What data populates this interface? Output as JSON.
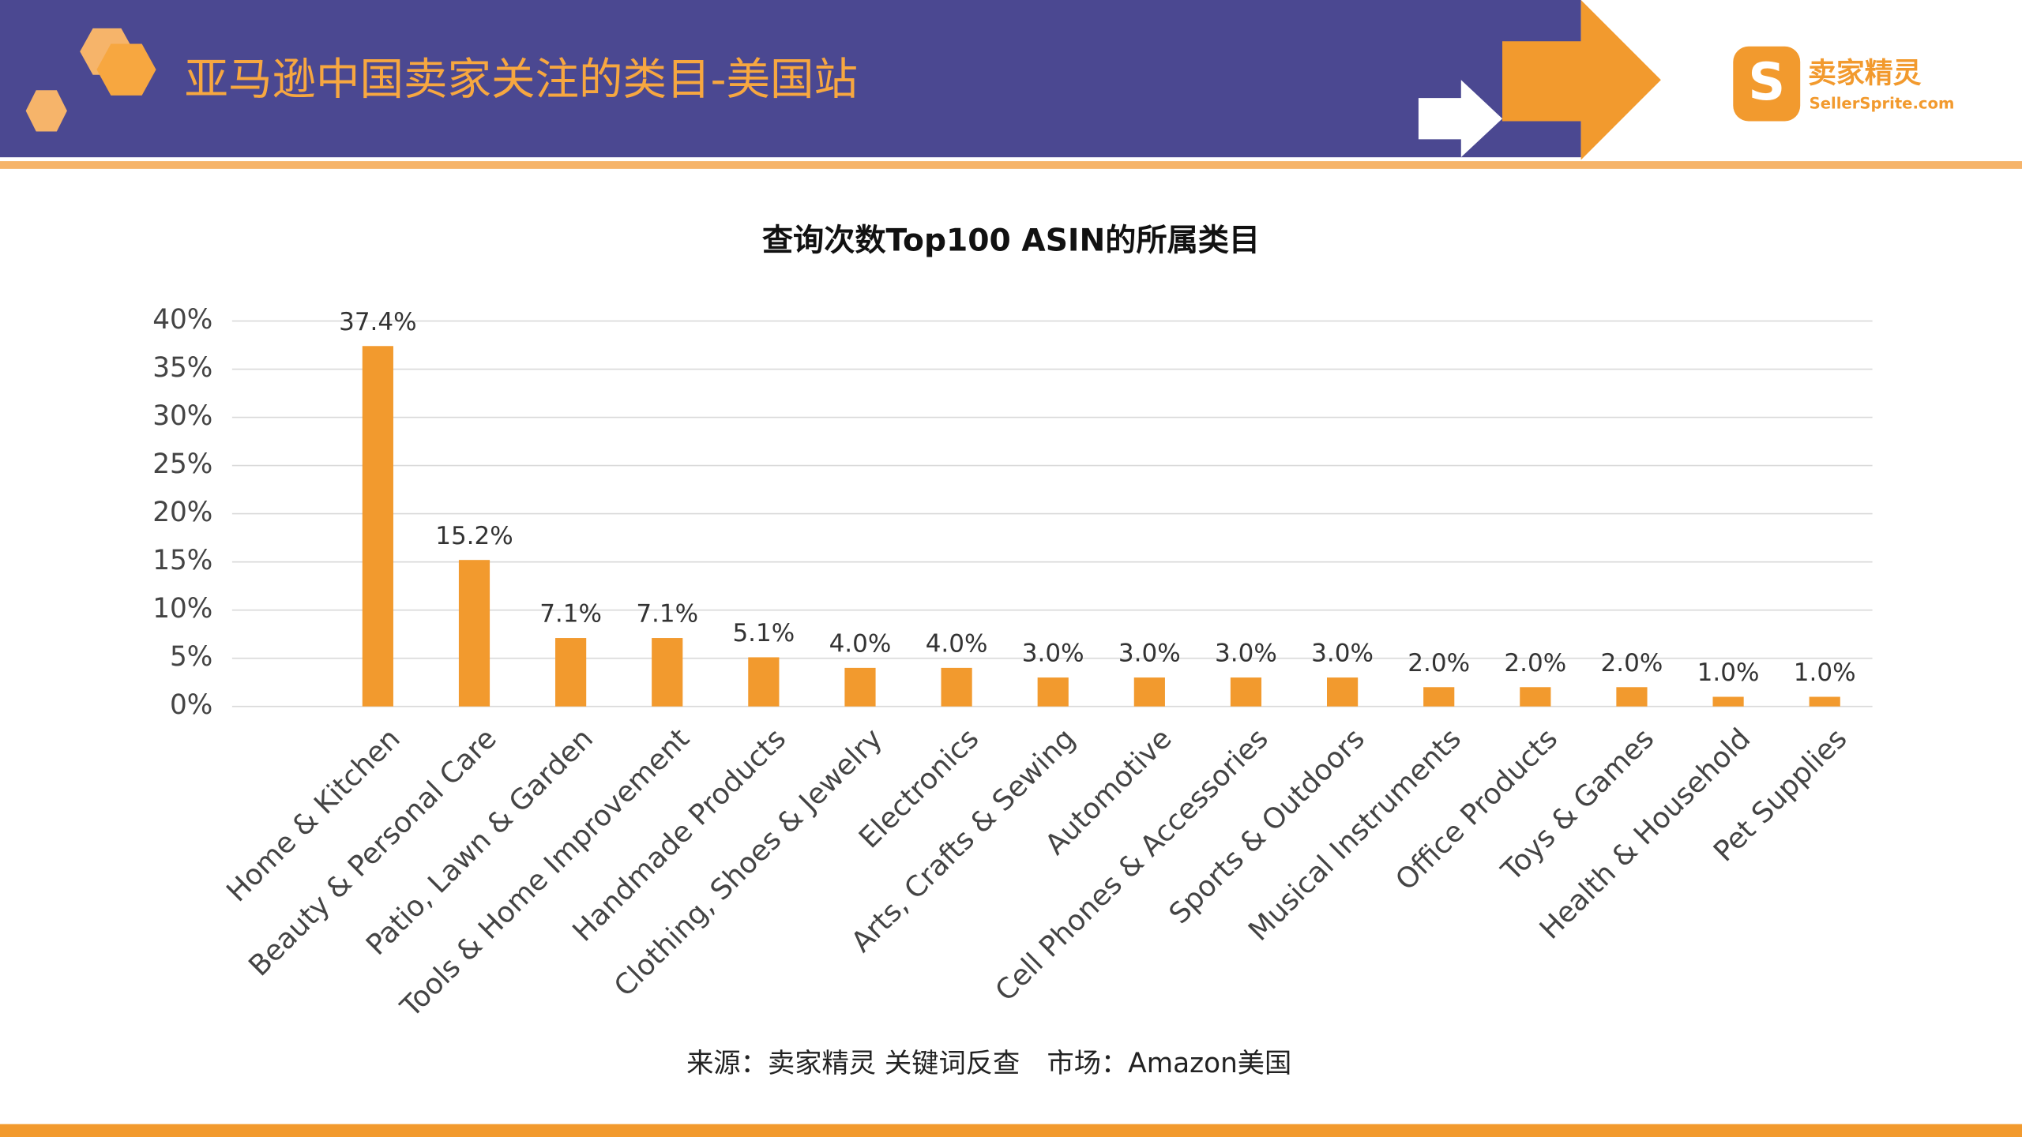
{
  "header": {
    "title": "亚马逊中国卖家关注的类目-美国站",
    "logo_name": "卖家精灵",
    "logo_site": "SellerSprite.com"
  },
  "chart_data": {
    "type": "bar",
    "title": "查询次数Top100 ASIN的所属类目",
    "color": "#f29a2e",
    "grid": true,
    "categories": [
      "Home & Kitchen",
      "Beauty & Personal Care",
      "Patio, Lawn & Garden",
      "Tools & Home Improvement",
      "Handmade Products",
      "Clothing, Shoes & Jewelry",
      "Electronics",
      "Arts, Crafts & Sewing",
      "Automotive",
      "Cell Phones & Accessories",
      "Sports & Outdoors",
      "Musical Instruments",
      "Office Products",
      "Toys & Games",
      "Health & Household",
      "Pet Supplies"
    ],
    "values": [
      37.4,
      15.2,
      7.1,
      7.1,
      5.1,
      4.0,
      4.0,
      3.0,
      3.0,
      3.0,
      3.0,
      2.0,
      2.0,
      2.0,
      1.0,
      1.0
    ],
    "value_labels": [
      "37.4%",
      "15.2%",
      "7.1%",
      "7.1%",
      "5.1%",
      "4.0%",
      "4.0%",
      "3.0%",
      "3.0%",
      "3.0%",
      "3.0%",
      "2.0%",
      "2.0%",
      "2.0%",
      "1.0%",
      "1.0%"
    ],
    "ylim": [
      0,
      40
    ],
    "yticks": [
      {
        "value": 0,
        "label": "0%"
      },
      {
        "value": 5,
        "label": "5%"
      },
      {
        "value": 10,
        "label": "10%"
      },
      {
        "value": 15,
        "label": "15%"
      },
      {
        "value": 20,
        "label": "20%"
      },
      {
        "value": 25,
        "label": "25%"
      },
      {
        "value": 30,
        "label": "30%"
      },
      {
        "value": 35,
        "label": "35%"
      },
      {
        "value": 40,
        "label": "40%"
      }
    ]
  },
  "source": "来源：卖家精灵 关键词反查　市场：Amazon美国"
}
